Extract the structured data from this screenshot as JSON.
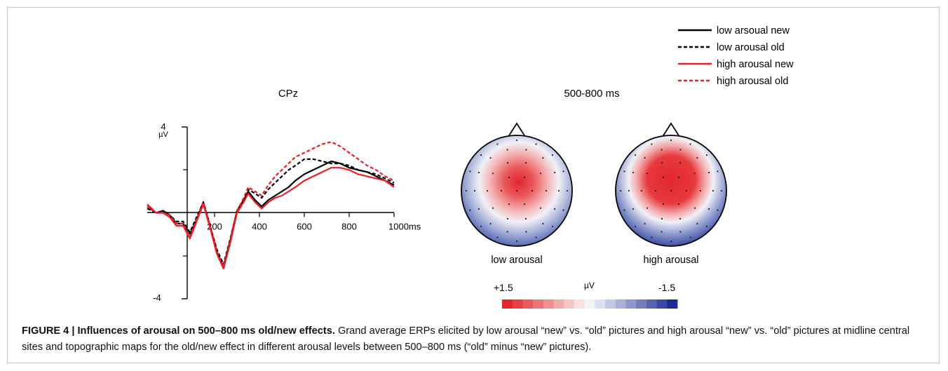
{
  "figure": {
    "legend": [
      {
        "label": "low arsoual new",
        "color": "#000000",
        "dashed": false
      },
      {
        "label": "low arousal old",
        "color": "#000000",
        "dashed": true
      },
      {
        "label": "high arousal new",
        "color": "#e8202a",
        "dashed": false
      },
      {
        "label": "high arousal old",
        "color": "#e8202a",
        "dashed": true
      }
    ],
    "erp": {
      "title": "CPz",
      "unit_label": "µV",
      "y_top_label": "4",
      "y_bottom_label": "-4",
      "x_ticks": [
        "200",
        "400",
        "600",
        "800",
        "1000ms"
      ]
    },
    "topo": {
      "title": "500-800 ms",
      "maps": [
        {
          "label": "low arousal"
        },
        {
          "label": "high arousal"
        }
      ],
      "colorbar": {
        "max_label": "+1.5",
        "unit_label": "µV",
        "min_label": "-1.5",
        "colors": [
          "#e3252e",
          "#e54045",
          "#e85a5d",
          "#ec7477",
          "#ef8f91",
          "#f3aaab",
          "#f6c5c6",
          "#fae1e1",
          "#f2f3f7",
          "#dde0ee",
          "#c4c9e3",
          "#aab1d8",
          "#8f97cc",
          "#747ebf",
          "#5763b2",
          "#3a48a5",
          "#1c2c94"
        ]
      }
    },
    "caption": {
      "label": "FIGURE 4 | Influences of arousal on 500–800 ms old/new effects.",
      "text": " Grand average ERPs elicited by low arousal “new” vs. “old” pictures and high arousal “new” vs. “old” pictures at midline central sites and topographic maps for the old/new effect in different arousal levels between 500–800 ms (“old” minus “new” pictures)."
    }
  },
  "chart_data": {
    "type": "line",
    "title": "CPz",
    "xlabel": "ms",
    "ylabel": "µV",
    "xlim": [
      -100,
      1000
    ],
    "ylim": [
      -4,
      4
    ],
    "x_ticks": [
      200,
      400,
      600,
      800,
      1000
    ],
    "series": [
      {
        "name": "low arsoual new",
        "color": "#000000",
        "dashed": false,
        "x": [
          -100,
          -60,
          -30,
          0,
          30,
          60,
          90,
          120,
          150,
          180,
          210,
          240,
          270,
          300,
          330,
          350,
          380,
          410,
          440,
          470,
          500,
          530,
          560,
          600,
          640,
          680,
          720,
          760,
          800,
          840,
          880,
          920,
          960,
          1000
        ],
        "y": [
          0.3,
          0.0,
          0.1,
          -0.1,
          -0.5,
          -0.5,
          -1.0,
          -0.3,
          0.5,
          -0.6,
          -1.8,
          -2.5,
          -1.3,
          0.1,
          0.6,
          1.0,
          0.6,
          0.3,
          0.6,
          0.8,
          1.0,
          1.2,
          1.5,
          1.8,
          2.0,
          2.2,
          2.4,
          2.3,
          2.1,
          2.0,
          1.9,
          1.7,
          1.5,
          1.3
        ]
      },
      {
        "name": "low arousal old",
        "color": "#000000",
        "dashed": true,
        "x": [
          -100,
          -60,
          -30,
          0,
          30,
          60,
          90,
          120,
          150,
          180,
          210,
          240,
          270,
          300,
          330,
          350,
          380,
          410,
          440,
          470,
          500,
          530,
          560,
          600,
          640,
          680,
          720,
          760,
          800,
          840,
          880,
          920,
          960,
          1000
        ],
        "y": [
          0.2,
          0.0,
          0.1,
          -0.1,
          -0.4,
          -0.4,
          -0.9,
          -0.2,
          0.5,
          -0.6,
          -1.7,
          -2.4,
          -1.2,
          0.1,
          0.6,
          1.1,
          0.9,
          0.7,
          1.1,
          1.4,
          1.7,
          2.0,
          2.2,
          2.5,
          2.5,
          2.4,
          2.3,
          2.3,
          2.2,
          2.0,
          1.9,
          1.8,
          1.6,
          1.4
        ]
      },
      {
        "name": "high arousal new",
        "color": "#e8202a",
        "dashed": false,
        "x": [
          -100,
          -60,
          -30,
          0,
          30,
          60,
          90,
          120,
          150,
          180,
          210,
          240,
          270,
          300,
          330,
          350,
          380,
          410,
          440,
          470,
          500,
          530,
          560,
          600,
          640,
          680,
          720,
          760,
          800,
          840,
          880,
          920,
          960,
          1000
        ],
        "y": [
          0.4,
          0.0,
          0.0,
          -0.2,
          -0.6,
          -0.6,
          -1.2,
          -0.4,
          0.4,
          -0.7,
          -1.9,
          -2.6,
          -1.4,
          0.0,
          0.5,
          0.9,
          0.5,
          0.2,
          0.5,
          0.7,
          0.8,
          1.0,
          1.2,
          1.5,
          1.7,
          1.9,
          2.1,
          2.1,
          2.0,
          1.8,
          1.7,
          1.6,
          1.5,
          1.2
        ]
      },
      {
        "name": "high arousal old",
        "color": "#e8202a",
        "dashed": true,
        "x": [
          -100,
          -60,
          -30,
          0,
          30,
          60,
          90,
          120,
          150,
          180,
          210,
          240,
          270,
          300,
          330,
          350,
          380,
          410,
          440,
          470,
          500,
          530,
          560,
          600,
          640,
          680,
          720,
          760,
          800,
          840,
          880,
          920,
          960,
          1000
        ],
        "y": [
          0.3,
          0.0,
          0.0,
          -0.1,
          -0.5,
          -0.5,
          -1.1,
          -0.3,
          0.5,
          -0.6,
          -1.8,
          -2.5,
          -1.3,
          0.1,
          0.7,
          1.2,
          1.0,
          0.8,
          1.3,
          1.7,
          2.0,
          2.3,
          2.6,
          2.8,
          3.0,
          3.2,
          3.3,
          3.1,
          2.8,
          2.5,
          2.2,
          2.0,
          1.7,
          1.5
        ]
      }
    ]
  }
}
